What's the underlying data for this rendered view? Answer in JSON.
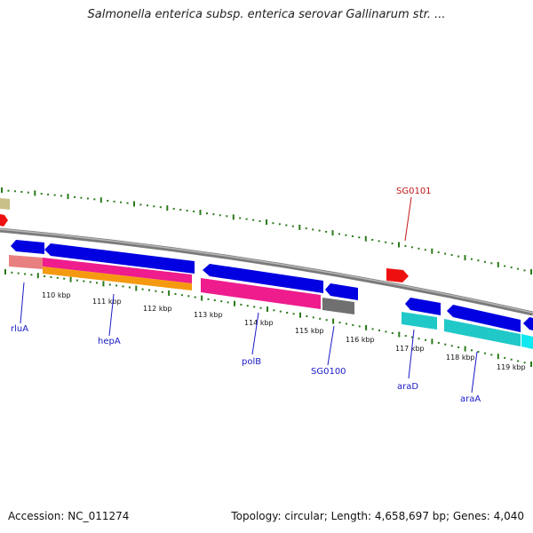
{
  "title": "Salmonella enterica subsp. enterica serovar Gallinarum str. ...",
  "footer": {
    "accession": "Accession: NC_011274",
    "summary": "Topology: circular; Length: 4,658,697 bp; Genes: 4,040"
  },
  "ticks": [
    "110 kbp",
    "111 kbp",
    "112 kbp",
    "113 kbp",
    "114 kbp",
    "115 kbp",
    "116 kbp",
    "117 kbp",
    "118 kbp",
    "119 kbp"
  ],
  "labels": {
    "rluA": "rluA",
    "hepA": "hepA",
    "polB": "polB",
    "SG0100": "SG0100",
    "SG0101": "SG0101",
    "araD": "araD",
    "araA": "araA"
  },
  "colors": {
    "backbone": "#8a8a8a",
    "forward_gene": "#0000e0",
    "reverse_gene": "#0000e0",
    "highlight_gene": "#ee1010",
    "label_blue": "#1a1ac8",
    "label_red": "#c01818",
    "tick_green": "#2a7a1a",
    "pink": "#ee1c8c",
    "salmon": "#e98080",
    "orange": "#f59a10",
    "gray_feature": "#707070",
    "cyan": "#20c8c8",
    "bright_cyan": "#10e8f0",
    "olive": "#c8c088"
  }
}
